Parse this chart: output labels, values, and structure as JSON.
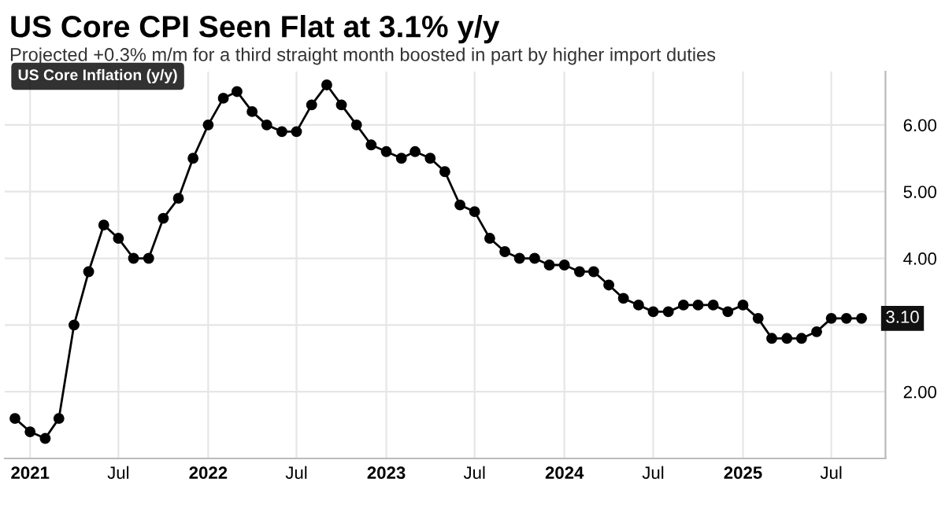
{
  "chart_data": {
    "type": "line",
    "title": "US Core CPI Seen Flat at 3.1% y/y",
    "subtitle": "Projected +0.3% m/m for a third straight month boosted in part by higher import duties",
    "x": [
      "2020-12",
      "2021-01",
      "2021-02",
      "2021-03",
      "2021-04",
      "2021-05",
      "2021-06",
      "2021-07",
      "2021-08",
      "2021-09",
      "2021-10",
      "2021-11",
      "2021-12",
      "2022-01",
      "2022-02",
      "2022-03",
      "2022-04",
      "2022-05",
      "2022-06",
      "2022-07",
      "2022-08",
      "2022-09",
      "2022-10",
      "2022-11",
      "2022-12",
      "2023-01",
      "2023-02",
      "2023-03",
      "2023-04",
      "2023-05",
      "2023-06",
      "2023-07",
      "2023-08",
      "2023-09",
      "2023-10",
      "2023-11",
      "2023-12",
      "2024-01",
      "2024-02",
      "2024-03",
      "2024-04",
      "2024-05",
      "2024-06",
      "2024-07",
      "2024-08",
      "2024-09",
      "2024-10",
      "2024-11",
      "2024-12",
      "2025-01",
      "2025-02",
      "2025-03",
      "2025-04",
      "2025-05",
      "2025-06",
      "2025-07",
      "2025-08",
      "2025-09"
    ],
    "series": [
      {
        "name": "US Core Inflation (y/y)",
        "color": "#000000",
        "values": [
          1.6,
          1.4,
          1.3,
          1.6,
          3.0,
          3.8,
          4.5,
          4.3,
          4.0,
          4.0,
          4.6,
          4.9,
          5.5,
          6.0,
          6.4,
          6.5,
          6.2,
          6.0,
          5.9,
          5.9,
          6.3,
          6.6,
          6.3,
          6.0,
          5.7,
          5.6,
          5.5,
          5.6,
          5.5,
          5.3,
          4.8,
          4.7,
          4.3,
          4.1,
          4.0,
          4.0,
          3.9,
          3.9,
          3.8,
          3.8,
          3.6,
          3.4,
          3.3,
          3.2,
          3.2,
          3.3,
          3.3,
          3.3,
          3.2,
          3.3,
          3.1,
          2.8,
          2.8,
          2.8,
          2.9,
          3.1,
          3.1,
          3.1
        ]
      }
    ],
    "xlim": [
      "2020-11-10",
      "2025-10-20"
    ],
    "xticks": [
      {
        "value": "2021-01",
        "label": "2021"
      },
      {
        "value": "2021-07",
        "label": "Jul"
      },
      {
        "value": "2022-01",
        "label": "2022"
      },
      {
        "value": "2022-07",
        "label": "Jul"
      },
      {
        "value": "2023-01",
        "label": "2023"
      },
      {
        "value": "2023-07",
        "label": "Jul"
      },
      {
        "value": "2024-01",
        "label": "2024"
      },
      {
        "value": "2024-07",
        "label": "Jul"
      },
      {
        "value": "2025-01",
        "label": "2025"
      },
      {
        "value": "2025-07",
        "label": "Jul"
      }
    ],
    "ylim": [
      1.0,
      6.8
    ],
    "yticks": [
      {
        "value": 2,
        "label": "2.00"
      },
      {
        "value": 3,
        "label": null
      },
      {
        "value": 4,
        "label": "4.00"
      },
      {
        "value": 5,
        "label": "5.00"
      },
      {
        "value": 6,
        "label": "6.00"
      }
    ],
    "annotations": [
      {
        "text": "3.10",
        "x": "2025-09",
        "y": 3.1
      }
    ],
    "grid": true,
    "legend": "top left",
    "marker": "circle",
    "line_style": "solid"
  }
}
